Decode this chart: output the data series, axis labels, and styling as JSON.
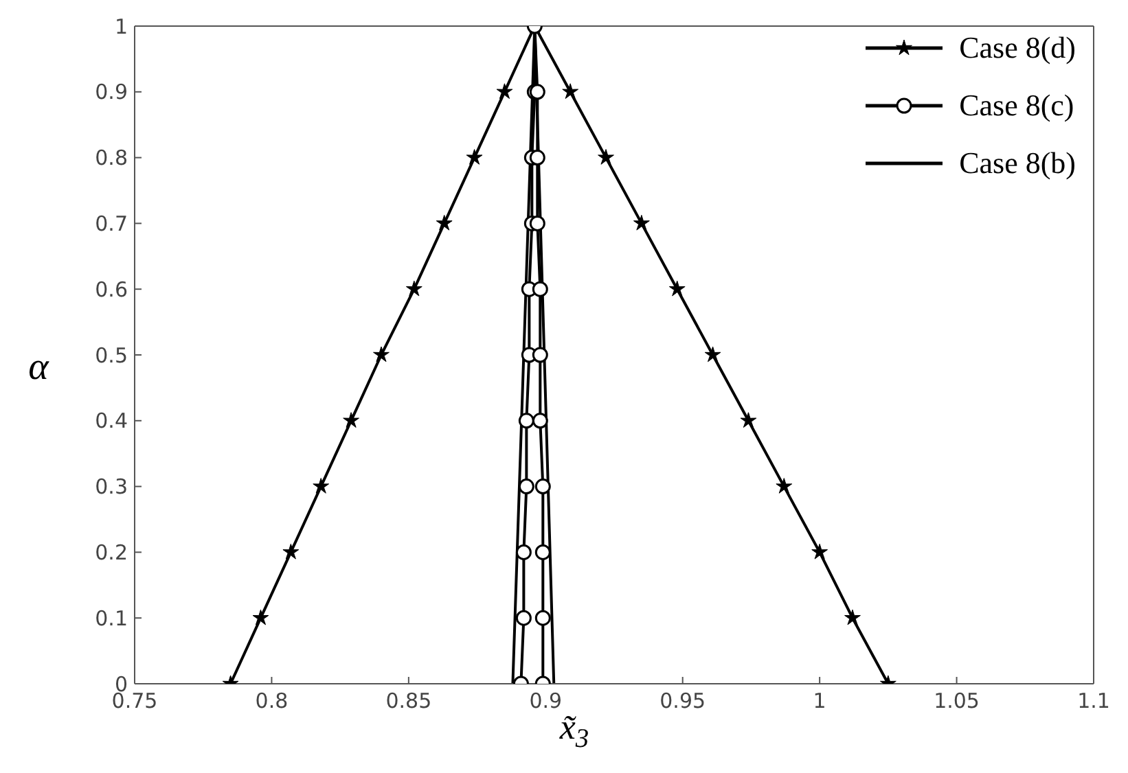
{
  "chart_data": {
    "type": "line",
    "xlabel": "x̃$_{3}$",
    "ylabel": "α",
    "xlim": [
      0.75,
      1.1
    ],
    "xticks": [
      0.75,
      0.8,
      0.85,
      0.9,
      0.95,
      1,
      1.05,
      1.1
    ],
    "ylim": [
      0,
      1
    ],
    "yticks": [
      0,
      0.1,
      0.2,
      0.3,
      0.4,
      0.5,
      0.6,
      0.7,
      0.8,
      0.9,
      1
    ],
    "grid": false,
    "legend": "top right",
    "line_style": "solid",
    "series": [
      {
        "name": "Case 8(d)",
        "color": "#000000",
        "marker": "star",
        "x": [
          0.785,
          0.796,
          0.807,
          0.818,
          0.829,
          0.84,
          0.852,
          0.863,
          0.874,
          0.885,
          0.896,
          0.909,
          0.922,
          0.935,
          0.948,
          0.961,
          0.974,
          0.987,
          1.0,
          1.012,
          1.025
        ],
        "values": [
          0,
          0.1,
          0.2,
          0.3,
          0.4,
          0.5,
          0.6,
          0.7,
          0.8,
          0.9,
          1,
          0.9,
          0.8,
          0.7,
          0.6,
          0.5,
          0.4,
          0.3,
          0.2,
          0.1,
          0
        ]
      },
      {
        "name": "Case 8(c)",
        "color": "#000000",
        "marker": "circle",
        "x": [
          0.891,
          0.892,
          0.892,
          0.893,
          0.893,
          0.894,
          0.894,
          0.895,
          0.895,
          0.896,
          0.896,
          0.897,
          0.897,
          0.897,
          0.898,
          0.898,
          0.898,
          0.899,
          0.899,
          0.899,
          0.899
        ],
        "values": [
          0,
          0.1,
          0.2,
          0.3,
          0.4,
          0.5,
          0.6,
          0.7,
          0.8,
          0.9,
          1,
          0.9,
          0.8,
          0.7,
          0.6,
          0.5,
          0.4,
          0.3,
          0.2,
          0.1,
          0
        ]
      },
      {
        "name": "Case 8(b)",
        "color": "#000000",
        "marker": "none",
        "x": [
          0.888,
          0.896,
          0.903
        ],
        "values": [
          0,
          1,
          0
        ]
      }
    ]
  }
}
